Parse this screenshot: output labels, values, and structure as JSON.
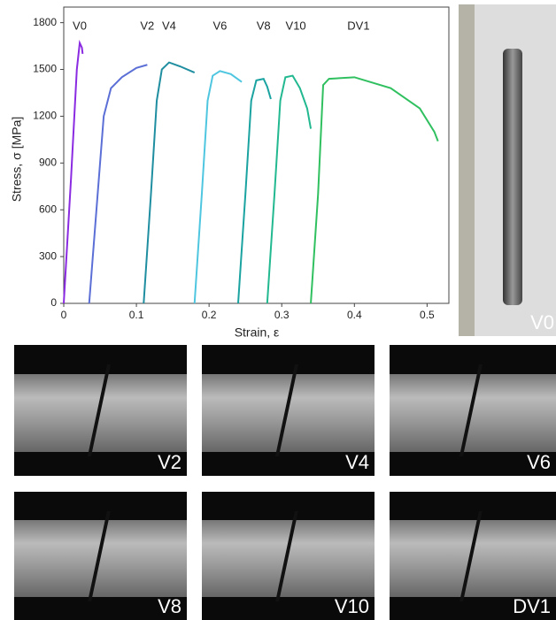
{
  "chart_data": {
    "type": "line",
    "xlabel": "Strain, ε",
    "ylabel": "Stress, σ [MPa]",
    "xlim": [
      0,
      0.53
    ],
    "ylim": [
      0,
      1900
    ],
    "xticks": [
      0,
      0.1,
      0.2,
      0.3,
      0.4,
      0.5
    ],
    "yticks": [
      0,
      300,
      600,
      900,
      1200,
      1500,
      1800
    ],
    "series": [
      {
        "name": "V0",
        "color": "#8a2be2",
        "x": [
          0,
          0.01,
          0.018,
          0.022,
          0.025,
          0.026
        ],
        "values": [
          0,
          800,
          1500,
          1670,
          1640,
          1600
        ]
      },
      {
        "name": "V2",
        "color": "#5b6fd6",
        "x": [
          0.035,
          0.045,
          0.055,
          0.065,
          0.08,
          0.1,
          0.115
        ],
        "values": [
          0,
          600,
          1200,
          1380,
          1450,
          1510,
          1530
        ]
      },
      {
        "name": "V4",
        "color": "#1f8ea0",
        "x": [
          0.11,
          0.12,
          0.128,
          0.135,
          0.145,
          0.16,
          0.18
        ],
        "values": [
          0,
          700,
          1300,
          1500,
          1545,
          1520,
          1480
        ]
      },
      {
        "name": "V6",
        "color": "#4fc6e0",
        "x": [
          0.18,
          0.19,
          0.198,
          0.205,
          0.215,
          0.23,
          0.245
        ],
        "values": [
          0,
          700,
          1300,
          1460,
          1490,
          1470,
          1420
        ]
      },
      {
        "name": "V8",
        "color": "#1aa3a0",
        "x": [
          0.24,
          0.25,
          0.258,
          0.265,
          0.275,
          0.28,
          0.285
        ],
        "values": [
          0,
          700,
          1300,
          1430,
          1440,
          1390,
          1310
        ]
      },
      {
        "name": "V10",
        "color": "#22b890",
        "x": [
          0.28,
          0.29,
          0.298,
          0.305,
          0.315,
          0.325,
          0.335,
          0.34
        ],
        "values": [
          0,
          700,
          1300,
          1450,
          1460,
          1380,
          1250,
          1120
        ]
      },
      {
        "name": "DV1",
        "color": "#30c060",
        "x": [
          0.34,
          0.35,
          0.357,
          0.365,
          0.4,
          0.45,
          0.49,
          0.51,
          0.515
        ],
        "values": [
          0,
          700,
          1400,
          1440,
          1450,
          1380,
          1250,
          1100,
          1040
        ]
      }
    ]
  },
  "photos": [
    {
      "label": "V0"
    },
    {
      "label": "V2"
    },
    {
      "label": "V4"
    },
    {
      "label": "V6"
    },
    {
      "label": "V8"
    },
    {
      "label": "V10"
    },
    {
      "label": "DV1"
    }
  ]
}
